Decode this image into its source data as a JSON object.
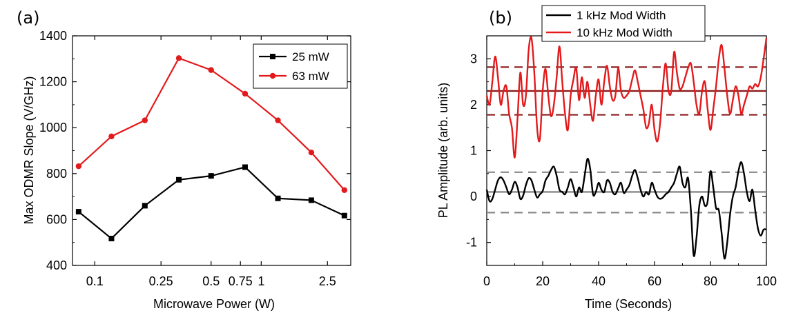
{
  "chart_data": [
    {
      "panel": "(a)",
      "type": "line",
      "xlabel": "Microwave Power (W)",
      "ylabel": "Max ODMR Slope (V/GHz)",
      "x_scale": "log",
      "xlim": [
        0.0735,
        3.45
      ],
      "ylim": [
        400,
        1400
      ],
      "x_ticks": [
        0.1,
        0.25,
        0.5,
        0.75,
        1,
        2.5
      ],
      "x_tick_labels": [
        "0.1",
        "0.25",
        "0.5",
        "0.75",
        "1",
        "2.5"
      ],
      "y_ticks": [
        400,
        600,
        800,
        1000,
        1200,
        1400
      ],
      "y_tick_labels": [
        "400",
        "600",
        "800",
        "1000",
        "1200",
        "1400"
      ],
      "legend_position": "top-right",
      "series": [
        {
          "name": "25 mW",
          "color": "#000000",
          "marker": "square",
          "x": [
            0.08,
            0.126,
            0.2,
            0.32,
            0.5,
            0.8,
            1.26,
            2.0,
            3.16
          ],
          "y": [
            634,
            517,
            660,
            773,
            790,
            828,
            692,
            684,
            617
          ]
        },
        {
          "name": "63 mW",
          "color": "#e31a1c",
          "marker": "circle",
          "x": [
            0.08,
            0.126,
            0.2,
            0.32,
            0.5,
            0.8,
            1.26,
            2.0,
            3.16
          ],
          "y": [
            832,
            962,
            1032,
            1303,
            1251,
            1148,
            1032,
            892,
            728
          ]
        }
      ]
    },
    {
      "panel": "(b)",
      "type": "line",
      "xlabel": "Time (Seconds)",
      "ylabel": "PL Amplitude (arb. units)",
      "xlim": [
        0,
        100
      ],
      "ylim": [
        -1.5,
        3.5
      ],
      "x_ticks": [
        0,
        20,
        40,
        60,
        80,
        100
      ],
      "x_tick_labels": [
        "0",
        "20",
        "40",
        "60",
        "80",
        "100"
      ],
      "y_ticks": [
        -1,
        0,
        1,
        2,
        3
      ],
      "y_tick_labels": [
        "-1",
        "0",
        "1",
        "2",
        "3"
      ],
      "legend_position": "top-left",
      "series": [
        {
          "name": "1 kHz Mod Width",
          "color": "#000000",
          "mean": 0.1,
          "band": [
            -0.35,
            0.53
          ],
          "x": [
            0,
            1,
            2,
            3,
            4,
            5,
            6,
            7,
            8,
            9,
            10,
            11,
            12,
            13,
            14,
            15,
            16,
            17,
            18,
            19,
            20,
            21,
            22,
            23,
            24,
            25,
            26,
            27,
            28,
            29,
            30,
            31,
            32,
            33,
            34,
            35,
            36,
            37,
            38,
            39,
            40,
            41,
            42,
            43,
            44,
            45,
            46,
            47,
            48,
            49,
            50,
            51,
            52,
            53,
            54,
            55,
            56,
            57,
            58,
            59,
            60,
            61,
            62,
            63,
            64,
            65,
            66,
            67,
            68,
            69,
            70,
            71,
            72,
            73,
            74,
            75,
            76,
            77,
            78,
            79,
            80,
            81,
            82,
            83,
            84,
            85,
            86,
            87,
            88,
            89,
            90,
            91,
            92,
            93,
            94,
            95,
            96,
            97,
            98,
            99,
            100
          ],
          "y": [
            0.15,
            -0.1,
            -0.05,
            0.15,
            0.35,
            0.42,
            0.35,
            0.2,
            0.05,
            0.15,
            0.32,
            0.2,
            -0.05,
            0.02,
            0.25,
            0.4,
            0.35,
            0.15,
            -0.02,
            0.05,
            0.12,
            0.35,
            0.45,
            0.58,
            0.65,
            0.45,
            0.15,
            0.1,
            0.05,
            0.2,
            0.38,
            0.2,
            0.0,
            0.2,
            0.1,
            0.45,
            0.82,
            0.6,
            0.05,
            0.1,
            0.3,
            0.15,
            0.1,
            0.35,
            0.3,
            0.1,
            0.05,
            0.18,
            0.3,
            0.08,
            0.15,
            0.25,
            0.45,
            0.58,
            0.4,
            0.15,
            0.0,
            0.1,
            0.05,
            0.3,
            0.15,
            0.0,
            -0.05,
            -0.02,
            0.05,
            0.1,
            0.2,
            0.3,
            0.5,
            0.65,
            0.3,
            0.2,
            0.4,
            -0.3,
            -1.28,
            -0.9,
            -0.2,
            0.0,
            -0.2,
            -0.1,
            0.55,
            0.2,
            -0.25,
            -0.3,
            -0.8,
            -1.35,
            -1.0,
            -0.4,
            0.0,
            0.2,
            0.55,
            0.75,
            0.5,
            0.1,
            -0.1,
            0.15,
            -0.3,
            -0.7,
            -0.85,
            -0.72,
            -0.72
          ]
        },
        {
          "name": "10 kHz Mod Width",
          "color": "#e31a1c",
          "mean": 2.3,
          "band": [
            1.78,
            2.82
          ],
          "x": [
            0,
            1,
            2,
            3,
            4,
            5,
            6,
            7,
            8,
            9,
            10,
            11,
            12,
            13,
            14,
            15,
            16,
            17,
            18,
            19,
            20,
            21,
            22,
            23,
            24,
            25,
            26,
            27,
            28,
            29,
            30,
            31,
            32,
            33,
            34,
            35,
            36,
            37,
            38,
            39,
            40,
            41,
            42,
            43,
            44,
            45,
            46,
            47,
            48,
            49,
            50,
            51,
            52,
            53,
            54,
            55,
            56,
            57,
            58,
            59,
            60,
            61,
            62,
            63,
            64,
            65,
            66,
            67,
            68,
            69,
            70,
            71,
            72,
            73,
            74,
            75,
            76,
            77,
            78,
            79,
            80,
            81,
            82,
            83,
            84,
            85,
            86,
            87,
            88,
            89,
            90,
            91,
            92,
            93,
            94,
            95,
            96,
            97,
            98,
            99,
            100
          ],
          "y": [
            2.2,
            2.0,
            2.5,
            3.05,
            2.6,
            2.0,
            2.3,
            2.4,
            1.8,
            1.5,
            0.85,
            1.7,
            2.7,
            2.0,
            2.2,
            3.2,
            3.45,
            2.7,
            1.5,
            1.25,
            2.3,
            2.78,
            2.2,
            1.75,
            2.0,
            2.6,
            3.27,
            2.5,
            1.8,
            1.45,
            2.2,
            2.55,
            2.8,
            2.1,
            2.6,
            2.15,
            2.5,
            2.0,
            1.65,
            2.2,
            2.55,
            2.0,
            2.5,
            2.85,
            2.4,
            2.1,
            2.2,
            2.8,
            2.3,
            2.15,
            2.2,
            2.3,
            2.55,
            2.75,
            2.5,
            2.2,
            1.9,
            1.5,
            1.6,
            2.0,
            1.45,
            1.2,
            1.6,
            2.4,
            2.9,
            2.3,
            2.3,
            3.15,
            2.7,
            2.35,
            2.4,
            2.6,
            2.8,
            2.9,
            2.5,
            2.0,
            1.8,
            2.3,
            2.5,
            1.9,
            1.45,
            1.9,
            2.4,
            3.0,
            3.3,
            2.8,
            2.2,
            1.8,
            2.1,
            2.4,
            2.2,
            1.8,
            2.0,
            2.2,
            2.4,
            2.35,
            2.45,
            2.4,
            2.6,
            3.0,
            3.45
          ]
        }
      ]
    }
  ]
}
